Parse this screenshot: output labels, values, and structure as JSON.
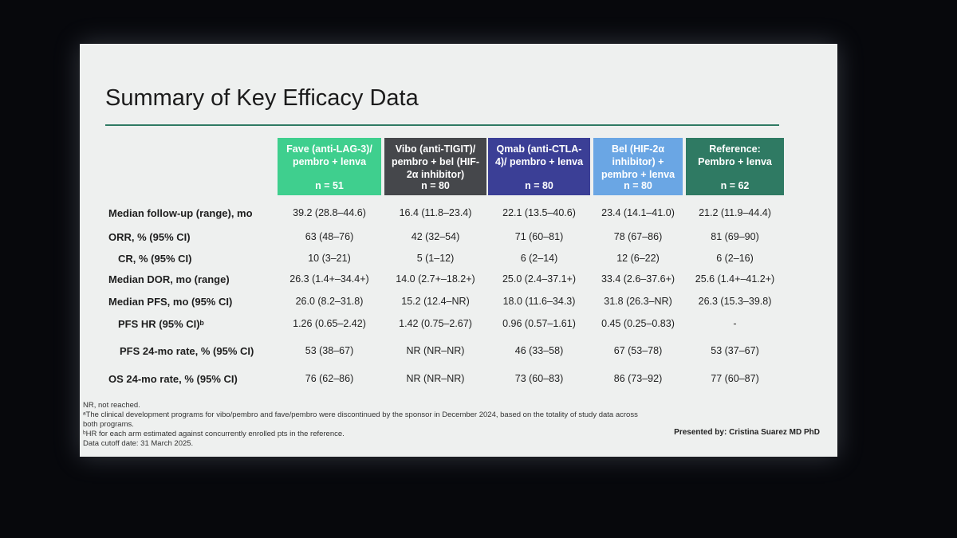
{
  "header": {
    "title": "Summary of Key Efficacy Data"
  },
  "table": {
    "columns": [
      {
        "label": "Fave (anti-LAG-3)/ pembro + lenva",
        "n": "n = 51",
        "color": "#3fcf8e"
      },
      {
        "label": "Vibo (anti-TIGIT)/ pembro + bel (HIF-2α inhibitor)",
        "n": "n = 80",
        "color": "#45474b"
      },
      {
        "label": "Qmab (anti-CTLA-4)/ pembro + lenva",
        "n": "n = 80",
        "color": "#3b3f96"
      },
      {
        "label": "Bel (HIF-2α inhibitor) + pembro + lenva",
        "n": "n = 80",
        "color": "#6aa6e4"
      },
      {
        "label": "Reference: Pembro + lenva",
        "n": "n = 62",
        "color": "#2f7a63"
      }
    ],
    "rows": [
      [
        "Median follow-up (range), mo",
        "39.2 (28.8–44.6)",
        "16.4 (11.8–23.4)",
        "22.1 (13.5–40.6)",
        "23.4 (14.1–41.0)",
        "21.2 (11.9–44.4)"
      ],
      [
        "ORR, % (95% CI)",
        "63 (48–76)",
        "42 (32–54)",
        "71 (60–81)",
        "78 (67–86)",
        "81 (69–90)"
      ],
      [
        "CR, % (95% CI)",
        "10 (3–21)",
        "5 (1–12)",
        "6 (2–14)",
        "12 (6–22)",
        "6 (2–16)"
      ],
      [
        "Median DOR, mo (range)",
        "26.3 (1.4+–34.4+)",
        "14.0 (2.7+–18.2+)",
        "25.0 (2.4–37.1+)",
        "33.4 (2.6–37.6+)",
        "25.6 (1.4+–41.2+)"
      ],
      [
        "Median PFS, mo (95% CI)",
        "26.0 (8.2–31.8)",
        "15.2 (12.4–NR)",
        "18.0 (11.6–34.3)",
        "31.8 (26.3–NR)",
        "26.3 (15.3–39.8)"
      ],
      [
        "PFS HR (95% CI)ᵇ",
        "1.26 (0.65–2.42)",
        "1.42 (0.75–2.67)",
        "0.96 (0.57–1.61)",
        "0.45 (0.25–0.83)",
        "-"
      ],
      [
        "PFS 24-mo rate, % (95% CI)",
        "53 (38–67)",
        "NR (NR–NR)",
        "46 (33–58)",
        "67 (53–78)",
        "53 (37–67)"
      ],
      [
        "OS 24-mo rate, % (95% CI)",
        "76 (62–86)",
        "NR (NR–NR)",
        "73 (60–83)",
        "86 (73–92)",
        "77 (60–87)"
      ]
    ]
  },
  "footnotes": [
    "NR, not reached.",
    "ᵃThe clinical development programs for vibo/pembro and fave/pembro were discontinued by the sponsor in December 2024, based on the totality of study data across both programs.",
    "ᵇHR for each arm estimated against concurrently enrolled pts in the reference.",
    "Data cutoff date: 31 March 2025."
  ],
  "presenter": "Presented by: Cristina Suarez MD PhD"
}
